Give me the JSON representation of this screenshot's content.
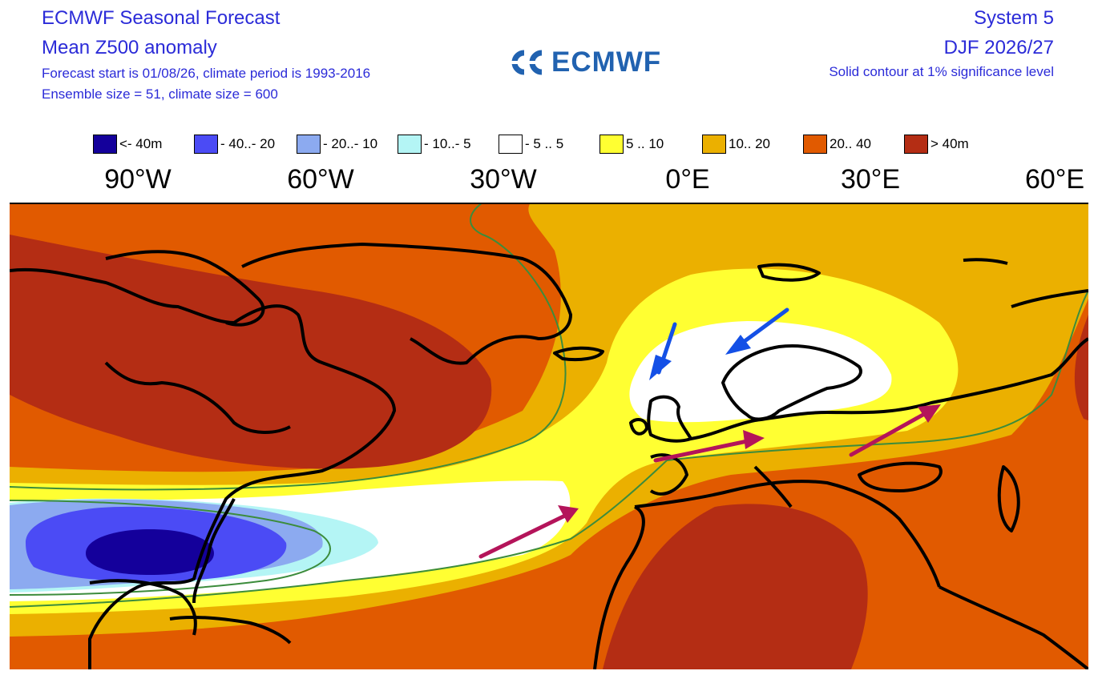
{
  "header": {
    "title": "ECMWF Seasonal Forecast",
    "subtitle": "Mean Z500 anomaly",
    "forecast_info": "Forecast start is 01/08/26, climate period is 1993-2016",
    "ensemble_info": "Ensemble size = 51, climate size = 600",
    "system": "System 5",
    "period": "DJF 2026/27",
    "significance": "Solid contour at 1% significance level"
  },
  "logo": {
    "text": "ECMWF",
    "icon": "ecmwf-logo-icon",
    "color": "#2162b0"
  },
  "legend": [
    {
      "label": "<- 40m",
      "color": "#14009b"
    },
    {
      "label": "- 40..- 20",
      "color": "#4b4bf5"
    },
    {
      "label": "- 20..- 10",
      "color": "#8caaf0"
    },
    {
      "label": "- 10..- 5",
      "color": "#b4f5f5"
    },
    {
      "label": "- 5 .. 5",
      "color": "#ffffff"
    },
    {
      "label": "5 .. 10",
      "color": "#ffff32"
    },
    {
      "label": "10.. 20",
      "color": "#ebb000"
    },
    {
      "label": "20.. 40",
      "color": "#e15a00"
    },
    {
      "label": "> 40m",
      "color": "#b42d14"
    }
  ],
  "longitudes": [
    "90°W",
    "60°W",
    "30°W",
    "0°E",
    "30°E",
    "60°E"
  ],
  "map": {
    "significance_contour_color": "#3c8c3c",
    "coastline_color": "#000000",
    "arrow_colors": {
      "blue": "#1450e6",
      "magenta": "#b4145a"
    }
  }
}
